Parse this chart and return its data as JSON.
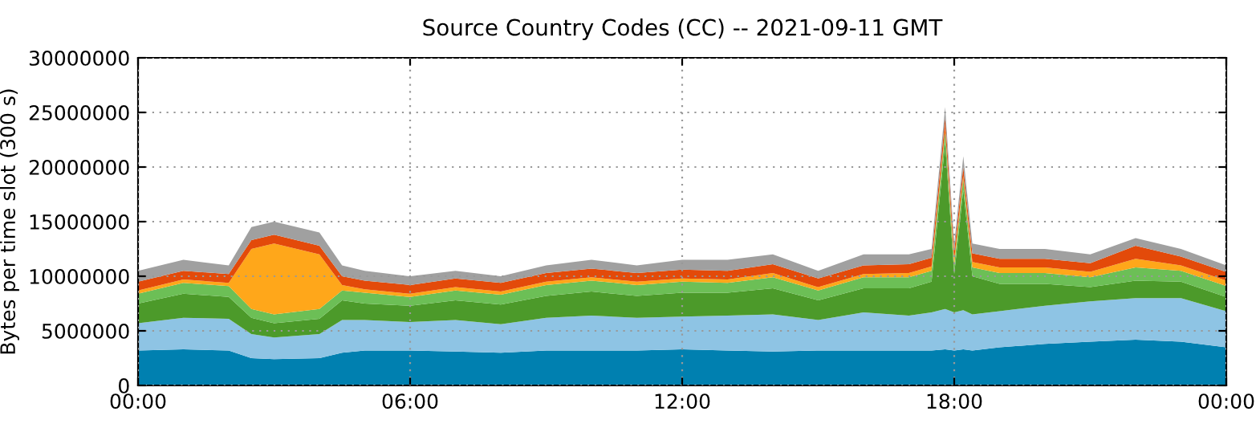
{
  "chart_data": {
    "type": "area",
    "stacked": true,
    "title": "Source Country Codes (CC) -- 2021-09-11 GMT",
    "ylabel": "Bytes per time slot (300 s)",
    "x": [
      0,
      1,
      2,
      2.5,
      3,
      4,
      4.5,
      5,
      6,
      7,
      8,
      9,
      10,
      11,
      12,
      13,
      14,
      15,
      16,
      17,
      17.5,
      17.8,
      18,
      18.2,
      18.4,
      19,
      20,
      21,
      22,
      23,
      24
    ],
    "series": [
      {
        "color": "#0080b0",
        "values": [
          3200000,
          3300000,
          3200000,
          2500000,
          2400000,
          2500000,
          3000000,
          3200000,
          3200000,
          3100000,
          3000000,
          3200000,
          3200000,
          3200000,
          3300000,
          3200000,
          3100000,
          3200000,
          3200000,
          3200000,
          3200000,
          3300000,
          3200000,
          3300000,
          3200000,
          3500000,
          3800000,
          4000000,
          4200000,
          4000000,
          3500000
        ]
      },
      {
        "color": "#8ec4e4",
        "values": [
          2500000,
          2900000,
          2900000,
          2200000,
          2000000,
          2200000,
          3000000,
          2800000,
          2600000,
          2900000,
          2600000,
          3000000,
          3200000,
          3000000,
          3000000,
          3200000,
          3400000,
          2800000,
          3500000,
          3200000,
          3500000,
          3700000,
          3500000,
          3600000,
          3300000,
          3300000,
          3500000,
          3700000,
          3800000,
          4000000,
          3300000
        ]
      },
      {
        "color": "#4c9a2a",
        "values": [
          1800000,
          2200000,
          2000000,
          1500000,
          1300000,
          1400000,
          1800000,
          1500000,
          1500000,
          1800000,
          1800000,
          2000000,
          2200000,
          2000000,
          2200000,
          2100000,
          2400000,
          1800000,
          2200000,
          2500000,
          2800000,
          15200000,
          3500000,
          11000000,
          3500000,
          2500000,
          2000000,
          1300000,
          1600000,
          1500000,
          1300000
        ]
      },
      {
        "color": "#6cbf56",
        "values": [
          900000,
          1000000,
          1000000,
          800000,
          800000,
          900000,
          900000,
          1000000,
          800000,
          900000,
          900000,
          1000000,
          1000000,
          1000000,
          1000000,
          900000,
          1000000,
          900000,
          1000000,
          1000000,
          1000000,
          1000000,
          800000,
          1000000,
          800000,
          1000000,
          1000000,
          900000,
          1200000,
          1000000,
          1000000
        ]
      },
      {
        "color": "#ffa71a",
        "values": [
          300000,
          300000,
          300000,
          5500000,
          6500000,
          5000000,
          500000,
          300000,
          300000,
          300000,
          300000,
          300000,
          300000,
          300000,
          300000,
          300000,
          400000,
          300000,
          300000,
          400000,
          400000,
          300000,
          500000,
          300000,
          500000,
          500000,
          500000,
          500000,
          800000,
          500000,
          500000
        ]
      },
      {
        "color": "#e34a0a",
        "values": [
          800000,
          800000,
          800000,
          800000,
          800000,
          800000,
          800000,
          800000,
          800000,
          800000,
          800000,
          800000,
          800000,
          800000,
          800000,
          800000,
          800000,
          800000,
          800000,
          800000,
          800000,
          1000000,
          800000,
          800000,
          800000,
          800000,
          800000,
          800000,
          1200000,
          800000,
          800000
        ]
      },
      {
        "color": "#a0a0a0",
        "values": [
          1000000,
          1000000,
          800000,
          1200000,
          1200000,
          1200000,
          1000000,
          900000,
          800000,
          700000,
          600000,
          700000,
          800000,
          700000,
          900000,
          1000000,
          900000,
          700000,
          1000000,
          900000,
          800000,
          1000000,
          700000,
          1000000,
          900000,
          900000,
          900000,
          800000,
          700000,
          700000,
          600000
        ]
      }
    ],
    "xlim": [
      0,
      24
    ],
    "xticks": [
      {
        "value": 0,
        "label": "00:00"
      },
      {
        "value": 6,
        "label": "06:00"
      },
      {
        "value": 12,
        "label": "12:00"
      },
      {
        "value": 18,
        "label": "18:00"
      },
      {
        "value": 24,
        "label": "00:00"
      }
    ],
    "ylim": [
      0,
      30000000
    ],
    "yticks": [
      0,
      5000000,
      10000000,
      15000000,
      20000000,
      25000000,
      30000000
    ],
    "grid": true
  }
}
